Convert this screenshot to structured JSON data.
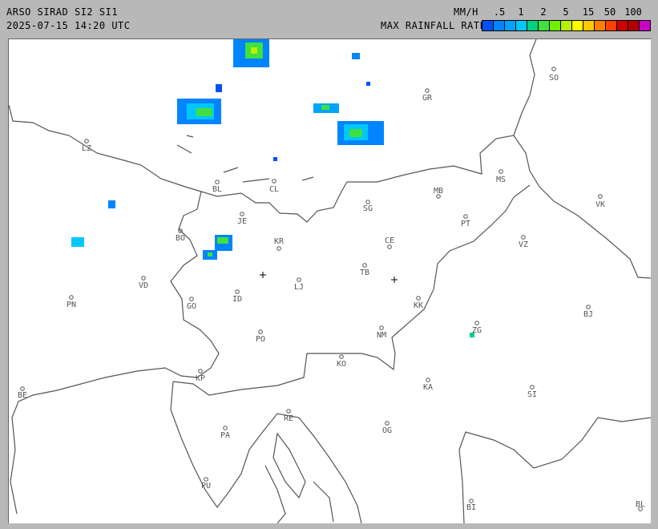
{
  "header": {
    "title": "ARSO SIRAD SI2 SI1",
    "timestamp": "2025-07-15 14:20 UTC",
    "unit": "MM/H",
    "legend_title": "MAX RAINFALL RATE"
  },
  "legend": {
    "labels": [
      ".5",
      "1",
      "2",
      "5",
      "15",
      "50",
      "100"
    ],
    "colors": [
      "#0050ff",
      "#0084ff",
      "#00a4ff",
      "#00c8ff",
      "#00d080",
      "#40e040",
      "#70f000",
      "#b8f000",
      "#ffff00",
      "#ffc800",
      "#ff8000",
      "#ff4000",
      "#d00000",
      "#b00000",
      "#c800c8"
    ]
  },
  "cities": [
    {
      "code": "SO"
    },
    {
      "code": "GR"
    },
    {
      "code": "LZ"
    },
    {
      "code": "BL"
    },
    {
      "code": "CL"
    },
    {
      "code": "MS"
    },
    {
      "code": "MB"
    },
    {
      "code": "VK"
    },
    {
      "code": "SG"
    },
    {
      "code": "JE"
    },
    {
      "code": "PT"
    },
    {
      "code": "BO"
    },
    {
      "code": "KR"
    },
    {
      "code": "CE"
    },
    {
      "code": "VZ"
    },
    {
      "code": "TB"
    },
    {
      "code": "VD"
    },
    {
      "code": "LJ"
    },
    {
      "code": "ID"
    },
    {
      "code": "PN"
    },
    {
      "code": "GO"
    },
    {
      "code": "KK"
    },
    {
      "code": "BJ"
    },
    {
      "code": "ZG"
    },
    {
      "code": "NM"
    },
    {
      "code": "PO"
    },
    {
      "code": "KO"
    },
    {
      "code": "KP"
    },
    {
      "code": "KA"
    },
    {
      "code": "SI"
    },
    {
      "code": "BE"
    },
    {
      "code": "RE"
    },
    {
      "code": "OG"
    },
    {
      "code": "PA"
    },
    {
      "code": "PU"
    },
    {
      "code": "BI"
    },
    {
      "code": "BL"
    }
  ]
}
